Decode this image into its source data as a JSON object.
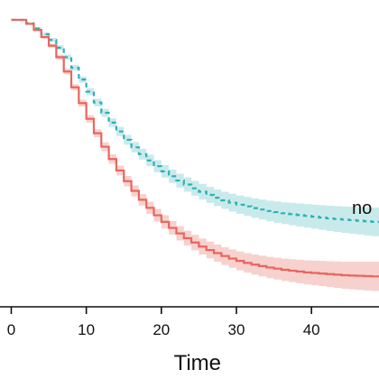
{
  "chart_data": {
    "type": "line",
    "xlabel": "Time",
    "xlim": [
      -1.5,
      49
    ],
    "ylim": [
      0.0,
      1.0
    ],
    "x_ticks": [
      0,
      10,
      20,
      30,
      40
    ],
    "x_tick_labels": [
      "0",
      "10",
      "20",
      "30",
      "40"
    ],
    "series": [
      {
        "label": "no",
        "color": "#2bb1b5",
        "band_color": "#bfe6e8",
        "style": "dashed",
        "x": [
          0,
          2,
          3,
          4,
          5,
          6,
          7,
          8,
          9,
          10,
          11,
          12,
          13,
          14,
          15,
          16,
          17,
          18,
          19,
          20,
          21,
          22,
          23,
          24,
          25,
          26,
          27,
          28,
          29,
          30,
          31,
          32,
          33,
          34,
          35,
          36,
          37,
          38,
          39,
          40,
          41,
          42,
          43,
          44,
          45,
          46,
          47,
          48,
          49
        ],
        "y": [
          1.0,
          0.988,
          0.97,
          0.95,
          0.93,
          0.903,
          0.87,
          0.833,
          0.792,
          0.75,
          0.712,
          0.676,
          0.642,
          0.611,
          0.582,
          0.556,
          0.532,
          0.51,
          0.49,
          0.472,
          0.455,
          0.44,
          0.426,
          0.413,
          0.401,
          0.39,
          0.38,
          0.371,
          0.363,
          0.356,
          0.35,
          0.344,
          0.339,
          0.334,
          0.33,
          0.326,
          0.323,
          0.32,
          0.317,
          0.314,
          0.311,
          0.308,
          0.306,
          0.304,
          0.302,
          0.3,
          0.298,
          0.296,
          0.294
        ],
        "lower": [
          1.0,
          0.985,
          0.965,
          0.944,
          0.923,
          0.895,
          0.861,
          0.823,
          0.781,
          0.738,
          0.699,
          0.662,
          0.627,
          0.595,
          0.565,
          0.538,
          0.513,
          0.49,
          0.469,
          0.45,
          0.432,
          0.416,
          0.401,
          0.387,
          0.374,
          0.362,
          0.351,
          0.341,
          0.332,
          0.324,
          0.317,
          0.31,
          0.304,
          0.298,
          0.293,
          0.288,
          0.284,
          0.28,
          0.276,
          0.272,
          0.268,
          0.264,
          0.261,
          0.258,
          0.255,
          0.252,
          0.249,
          0.246,
          0.243
        ],
        "upper": [
          1.0,
          0.991,
          0.975,
          0.956,
          0.937,
          0.911,
          0.879,
          0.843,
          0.803,
          0.762,
          0.725,
          0.69,
          0.657,
          0.627,
          0.599,
          0.574,
          0.551,
          0.53,
          0.511,
          0.494,
          0.478,
          0.464,
          0.451,
          0.439,
          0.428,
          0.418,
          0.409,
          0.401,
          0.394,
          0.388,
          0.383,
          0.378,
          0.374,
          0.37,
          0.367,
          0.364,
          0.362,
          0.36,
          0.358,
          0.356,
          0.354,
          0.352,
          0.351,
          0.35,
          0.349,
          0.348,
          0.347,
          0.346,
          0.345
        ]
      },
      {
        "label": "",
        "color": "#e8665f",
        "band_color": "#f6c9c6",
        "style": "solid",
        "x": [
          0,
          2,
          3,
          4,
          5,
          6,
          7,
          8,
          9,
          10,
          11,
          12,
          13,
          14,
          15,
          16,
          17,
          18,
          19,
          20,
          21,
          22,
          23,
          24,
          25,
          26,
          27,
          28,
          29,
          30,
          31,
          32,
          33,
          34,
          35,
          36,
          37,
          38,
          39,
          40,
          41,
          42,
          43,
          44,
          45,
          46,
          47,
          48,
          49
        ],
        "y": [
          1.0,
          0.986,
          0.965,
          0.94,
          0.91,
          0.87,
          0.82,
          0.765,
          0.71,
          0.655,
          0.605,
          0.558,
          0.515,
          0.475,
          0.438,
          0.404,
          0.373,
          0.345,
          0.319,
          0.296,
          0.275,
          0.256,
          0.239,
          0.224,
          0.21,
          0.198,
          0.187,
          0.177,
          0.168,
          0.16,
          0.153,
          0.147,
          0.142,
          0.137,
          0.133,
          0.129,
          0.126,
          0.123,
          0.12,
          0.118,
          0.116,
          0.114,
          0.112,
          0.11,
          0.109,
          0.108,
          0.107,
          0.106,
          0.105
        ],
        "lower": [
          1.0,
          0.983,
          0.96,
          0.934,
          0.903,
          0.861,
          0.81,
          0.754,
          0.698,
          0.642,
          0.591,
          0.543,
          0.499,
          0.458,
          0.42,
          0.385,
          0.353,
          0.324,
          0.297,
          0.273,
          0.251,
          0.231,
          0.213,
          0.197,
          0.182,
          0.169,
          0.157,
          0.146,
          0.136,
          0.127,
          0.119,
          0.112,
          0.106,
          0.1,
          0.095,
          0.09,
          0.086,
          0.082,
          0.078,
          0.075,
          0.072,
          0.069,
          0.066,
          0.063,
          0.061,
          0.059,
          0.057,
          0.055,
          0.053
        ],
        "upper": [
          1.0,
          0.989,
          0.97,
          0.946,
          0.917,
          0.879,
          0.83,
          0.776,
          0.722,
          0.668,
          0.619,
          0.573,
          0.531,
          0.492,
          0.456,
          0.423,
          0.393,
          0.366,
          0.341,
          0.319,
          0.299,
          0.281,
          0.265,
          0.251,
          0.238,
          0.227,
          0.217,
          0.208,
          0.2,
          0.193,
          0.187,
          0.182,
          0.178,
          0.174,
          0.171,
          0.168,
          0.166,
          0.164,
          0.162,
          0.161,
          0.16,
          0.159,
          0.158,
          0.157,
          0.157,
          0.157,
          0.157,
          0.157,
          0.157
        ]
      }
    ],
    "grid": false,
    "legend": "inline"
  }
}
